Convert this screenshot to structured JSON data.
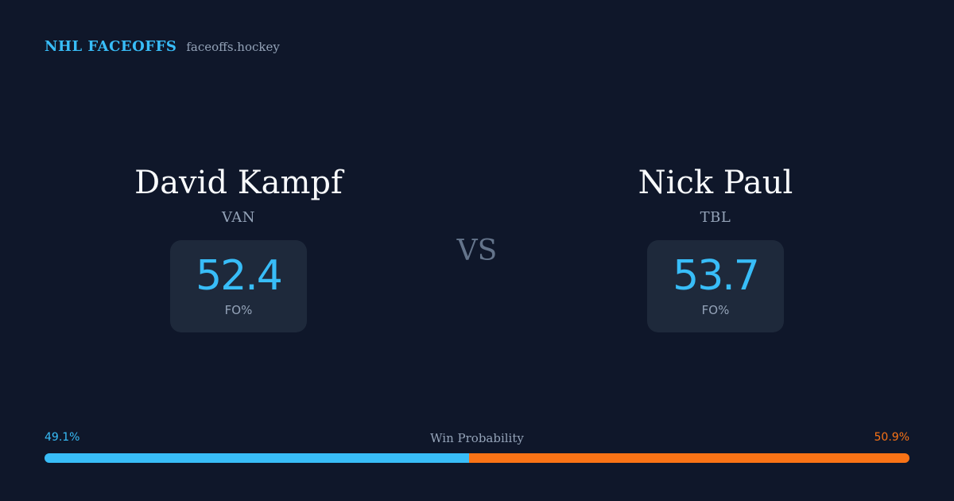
{
  "brand": {
    "name": "NHL FACEOFFS",
    "domain": "faceoffs.hockey"
  },
  "player_left": {
    "name": "David Kampf",
    "team": "VAN",
    "stat_value": "52.4",
    "stat_label": "FO%"
  },
  "vs_text": "VS",
  "player_right": {
    "name": "Nick Paul",
    "team": "TBL",
    "stat_value": "53.7",
    "stat_label": "FO%"
  },
  "win_probability": {
    "title": "Win Probability",
    "left_label": "49.1%",
    "right_label": "50.9%",
    "left_value": 49.1,
    "right_value": 50.9
  },
  "colors": {
    "background": "#0f172a",
    "card": "#1e293b",
    "accent_blue": "#38bdf8",
    "accent_orange": "#f97316",
    "muted": "#94a3b8"
  }
}
